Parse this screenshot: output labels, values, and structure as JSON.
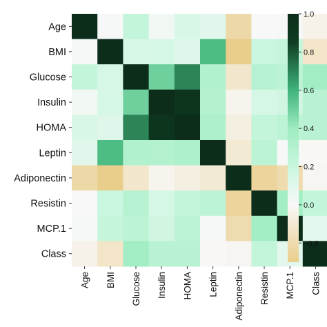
{
  "chart_data": {
    "type": "heatmap",
    "rows": [
      "Age",
      "BMI",
      "Glucose",
      "Insulin",
      "HOMA",
      "Leptin",
      "Adiponectin",
      "Resistin",
      "MCP.1",
      "Class"
    ],
    "columns": [
      "Age",
      "BMI",
      "Glucose",
      "Insulin",
      "HOMA",
      "Leptin",
      "Adiponectin",
      "Resistin",
      "MCP.1",
      "Class"
    ],
    "values": [
      [
        1.0,
        0.01,
        0.23,
        0.03,
        0.13,
        0.1,
        -0.22,
        0.0,
        0.01,
        -0.04
      ],
      [
        0.01,
        1.0,
        0.14,
        0.15,
        0.11,
        0.57,
        -0.3,
        0.2,
        0.22,
        -0.13
      ],
      [
        0.23,
        0.14,
        1.0,
        0.5,
        0.7,
        0.31,
        -0.12,
        0.29,
        0.26,
        0.38
      ],
      [
        0.03,
        0.15,
        0.5,
        1.0,
        0.93,
        0.3,
        -0.03,
        0.15,
        0.17,
        0.28
      ],
      [
        0.13,
        0.11,
        0.7,
        0.93,
        1.0,
        0.33,
        -0.06,
        0.23,
        0.26,
        0.28
      ],
      [
        0.1,
        0.57,
        0.31,
        0.3,
        0.33,
        1.0,
        -0.1,
        0.26,
        0.01,
        -0.01
      ],
      [
        -0.22,
        -0.3,
        -0.12,
        -0.03,
        -0.06,
        -0.1,
        1.0,
        -0.25,
        -0.2,
        -0.02
      ],
      [
        0.0,
        0.2,
        0.29,
        0.15,
        0.23,
        0.26,
        -0.25,
        1.0,
        0.37,
        0.23
      ],
      [
        0.01,
        0.22,
        0.26,
        0.17,
        0.26,
        0.01,
        -0.2,
        0.37,
        1.0,
        0.09
      ],
      [
        -0.04,
        -0.13,
        0.38,
        0.28,
        0.28,
        -0.01,
        -0.02,
        0.23,
        0.09,
        1.0
      ]
    ],
    "colorbar": {
      "min": -0.3,
      "max": 1.0,
      "ticks": [
        -0.2,
        0.0,
        0.2,
        0.4,
        0.6,
        0.8,
        1.0
      ],
      "tick_labels": [
        "−0.2",
        "0.0",
        "0.2",
        "0.4",
        "0.6",
        "0.8",
        "1.0"
      ]
    },
    "colors": {
      "negative": "#e9cd8a",
      "zero": "#f8f8f8",
      "mid_low": "#c9f6de",
      "mid": "#9eecc0",
      "mid_high": "#3fb37b",
      "high": "#0f3e22",
      "max": "#0b2d1a"
    },
    "title": "",
    "xlabel": "",
    "ylabel": "",
    "grid": false,
    "legend": "colorbar-right"
  }
}
